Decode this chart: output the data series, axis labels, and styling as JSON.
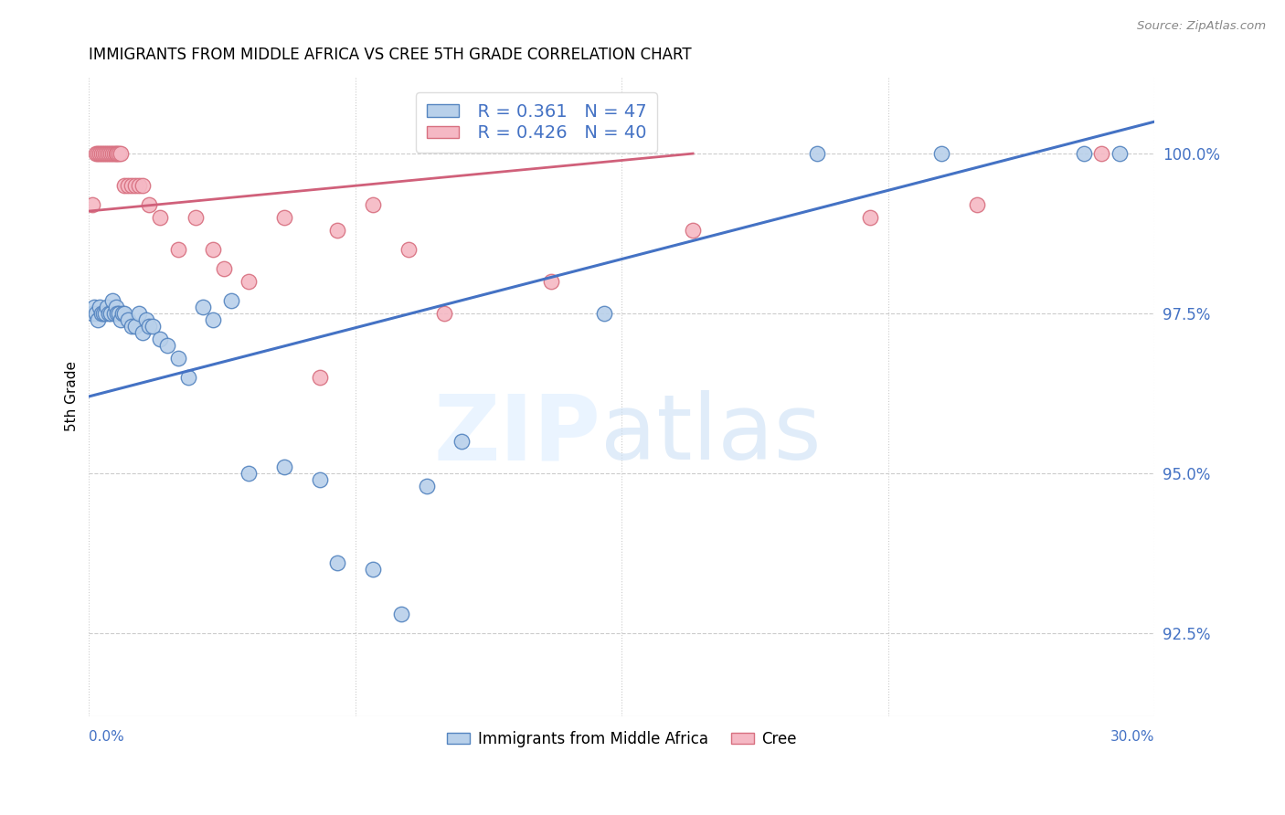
{
  "title": "IMMIGRANTS FROM MIDDLE AFRICA VS CREE 5TH GRADE CORRELATION CHART",
  "source": "Source: ZipAtlas.com",
  "ylabel": "5th Grade",
  "ytick_values": [
    92.5,
    95.0,
    97.5,
    100.0
  ],
  "xlim": [
    0.0,
    30.0
  ],
  "ylim": [
    91.2,
    101.2
  ],
  "legend_blue_label": "Immigrants from Middle Africa",
  "legend_pink_label": "Cree",
  "legend_R_blue": "R = 0.361",
  "legend_N_blue": "N = 47",
  "legend_R_pink": "R = 0.426",
  "legend_N_pink": "N = 40",
  "blue_fill": "#b8d0ea",
  "pink_fill": "#f5b8c4",
  "blue_edge": "#5585c0",
  "pink_edge": "#d87080",
  "blue_line": "#4472c4",
  "pink_line": "#d0607a",
  "blue_scatter_x": [
    0.1,
    0.15,
    0.2,
    0.25,
    0.3,
    0.35,
    0.4,
    0.45,
    0.5,
    0.55,
    0.6,
    0.65,
    0.7,
    0.75,
    0.8,
    0.85,
    0.9,
    0.95,
    1.0,
    1.1,
    1.2,
    1.3,
    1.4,
    1.5,
    1.6,
    1.7,
    1.8,
    2.0,
    2.2,
    2.5,
    2.8,
    3.2,
    3.5,
    4.0,
    4.5,
    5.5,
    6.5,
    7.0,
    8.0,
    8.8,
    9.5,
    10.5,
    14.5,
    20.5,
    24.0,
    28.0,
    29.0
  ],
  "blue_scatter_y": [
    97.5,
    97.6,
    97.5,
    97.4,
    97.6,
    97.5,
    97.5,
    97.5,
    97.6,
    97.5,
    97.5,
    97.7,
    97.5,
    97.6,
    97.5,
    97.5,
    97.4,
    97.5,
    97.5,
    97.4,
    97.3,
    97.3,
    97.5,
    97.2,
    97.4,
    97.3,
    97.3,
    97.1,
    97.0,
    96.8,
    96.5,
    97.6,
    97.4,
    97.7,
    95.0,
    95.1,
    94.9,
    93.6,
    93.5,
    92.8,
    94.8,
    95.5,
    97.5,
    100.0,
    100.0,
    100.0,
    100.0
  ],
  "pink_scatter_x": [
    0.1,
    0.2,
    0.25,
    0.3,
    0.35,
    0.4,
    0.45,
    0.5,
    0.55,
    0.6,
    0.65,
    0.7,
    0.75,
    0.8,
    0.85,
    0.9,
    1.0,
    1.1,
    1.2,
    1.3,
    1.4,
    1.5,
    1.7,
    2.0,
    2.5,
    3.0,
    3.5,
    4.5,
    5.5,
    7.0,
    8.0,
    9.0,
    13.0,
    17.0,
    22.0,
    25.0,
    28.5,
    3.8,
    6.5,
    10.0
  ],
  "pink_scatter_y": [
    99.2,
    100.0,
    100.0,
    100.0,
    100.0,
    100.0,
    100.0,
    100.0,
    100.0,
    100.0,
    100.0,
    100.0,
    100.0,
    100.0,
    100.0,
    100.0,
    99.5,
    99.5,
    99.5,
    99.5,
    99.5,
    99.5,
    99.2,
    99.0,
    98.5,
    99.0,
    98.5,
    98.0,
    99.0,
    98.8,
    99.2,
    98.5,
    98.0,
    98.8,
    99.0,
    99.2,
    100.0,
    98.2,
    96.5,
    97.5
  ],
  "blue_trendline_x": [
    0.0,
    30.0
  ],
  "blue_trendline_y": [
    96.2,
    100.5
  ],
  "pink_trendline_x": [
    0.0,
    17.0
  ],
  "pink_trendline_y": [
    99.1,
    100.0
  ]
}
